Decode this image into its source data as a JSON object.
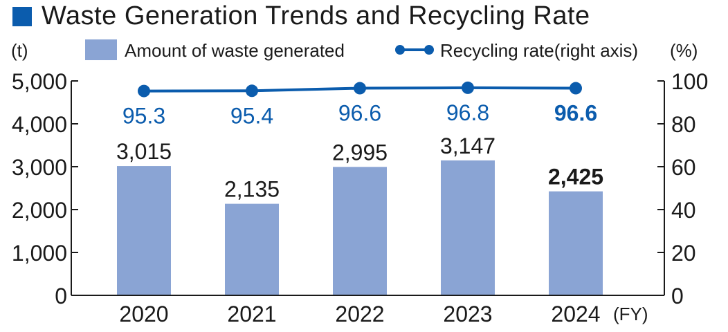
{
  "chart_data": {
    "type": "bar+line",
    "title": "Waste Generation Trends and Recycling Rate",
    "categories": [
      "2020",
      "2021",
      "2022",
      "2023",
      "2024"
    ],
    "x_unit": "(FY)",
    "left_axis": {
      "unit": "(t)",
      "ylim": [
        0,
        5000
      ],
      "ticks": [
        "0",
        "1,000",
        "2,000",
        "3,000",
        "4,000",
        "5,000"
      ]
    },
    "right_axis": {
      "unit": "(%)",
      "ylim": [
        0,
        100
      ],
      "ticks": [
        "0",
        "20",
        "40",
        "60",
        "80",
        "100"
      ]
    },
    "series": [
      {
        "name": "Amount of waste generated",
        "kind": "bar",
        "axis": "left",
        "color": "#8aa4d4",
        "values": [
          3015,
          2135,
          2995,
          3147,
          2425
        ],
        "labels": [
          "3,015",
          "2,135",
          "2,995",
          "3,147",
          "2,425"
        ]
      },
      {
        "name": "Recycling rate(right axis)",
        "kind": "line",
        "axis": "right",
        "color": "#0b5cad",
        "values": [
          95.3,
          95.4,
          96.6,
          96.8,
          96.6
        ],
        "labels": [
          "95.3",
          "95.4",
          "96.6",
          "96.8",
          "96.6"
        ]
      }
    ],
    "highlight_last": true
  }
}
